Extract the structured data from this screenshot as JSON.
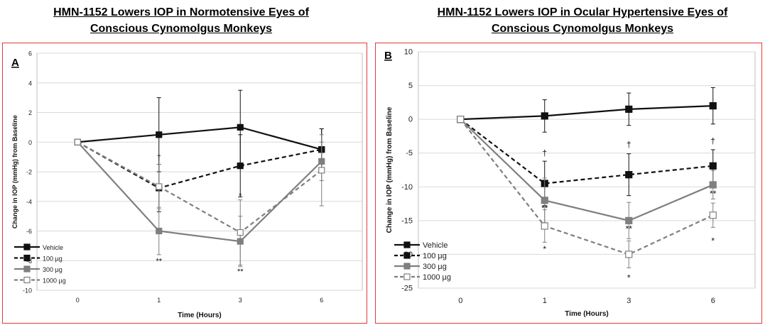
{
  "titles": {
    "a_line1": "HMN-1152 Lowers IOP in Normotensive Eyes of",
    "a_line2": "Conscious Cynomolgus Monkeys",
    "b_line1": "HMN-1152 Lowers  IOP in  Ocular Hypertensive Eyes of",
    "b_line2": "Conscious Cynomolgus Monkeys"
  },
  "chart_data": [
    {
      "type": "line",
      "panel_label": "A",
      "xlabel": "Time (Hours)",
      "ylabel": "Change in IOP (mmHg) from Baseline",
      "categories": [
        "0",
        "1",
        "3",
        "6"
      ],
      "ylim": [
        -10,
        6
      ],
      "yticks": [
        6,
        4,
        2,
        0,
        -2,
        -4,
        -6,
        -8,
        -10
      ],
      "grid": true,
      "legend_position": "bottom-left",
      "series": [
        {
          "name": "Vehicle",
          "values": [
            0,
            0.5,
            1.0,
            -0.5
          ],
          "err": [
            0,
            2.5,
            2.5,
            1.4
          ],
          "color": "#111111",
          "dash": "solid",
          "marker": "filled"
        },
        {
          "name": "100 µg",
          "values": [
            0,
            -3.1,
            -1.6,
            -0.5
          ],
          "err": [
            0,
            1.6,
            2.1,
            1.4
          ],
          "color": "#111111",
          "dash": "dashed",
          "marker": "filled"
        },
        {
          "name": "300 µg",
          "values": [
            0,
            -6.0,
            -6.7,
            -1.3
          ],
          "err": [
            0,
            1.6,
            1.7,
            1.3
          ],
          "color": "#7f7f7f",
          "dash": "solid",
          "marker": "filled"
        },
        {
          "name": "1000 µg",
          "values": [
            0,
            -3.0,
            -6.1,
            -1.9
          ],
          "err": [
            0,
            1.5,
            2.2,
            2.4
          ],
          "color": "#7f7f7f",
          "dash": "dashed",
          "marker": "open"
        }
      ],
      "annotations": [
        {
          "text": "†",
          "x": "1",
          "y": -1.0
        },
        {
          "text": "**",
          "x": "1",
          "y": -8.0
        },
        {
          "text": "*",
          "x": "3",
          "y": -3.6
        },
        {
          "text": "**",
          "x": "3",
          "y": -8.7
        }
      ]
    },
    {
      "type": "line",
      "panel_label": "B",
      "xlabel": "Time (Hours)",
      "ylabel": "Change in IOP (mmHg) from Baseline",
      "categories": [
        "0",
        "1",
        "3",
        "6"
      ],
      "ylim": [
        -25,
        10
      ],
      "yticks": [
        10,
        5,
        0,
        -5,
        -10,
        -15,
        -20,
        -25
      ],
      "grid": true,
      "legend_position": "bottom-left",
      "series": [
        {
          "name": "Vehicle",
          "values": [
            0,
            0.5,
            1.5,
            2.0
          ],
          "err": [
            0,
            2.4,
            2.4,
            2.7
          ],
          "color": "#111111",
          "dash": "solid",
          "marker": "filled"
        },
        {
          "name": "100 µg",
          "values": [
            0,
            -9.5,
            -8.2,
            -6.9
          ],
          "err": [
            0,
            3.3,
            3.1,
            2.4
          ],
          "color": "#111111",
          "dash": "dashed",
          "marker": "filled"
        },
        {
          "name": "300 µg",
          "values": [
            0,
            -12.0,
            -15.0,
            -9.7
          ],
          "err": [
            0,
            3.3,
            2.7,
            2.1
          ],
          "color": "#7f7f7f",
          "dash": "solid",
          "marker": "filled"
        },
        {
          "name": "1000 µg",
          "values": [
            0,
            -15.8,
            -20.0,
            -14.2
          ],
          "err": [
            0,
            2.4,
            2.0,
            1.8
          ],
          "color": "#7f7f7f",
          "dash": "dashed",
          "marker": "open"
        }
      ],
      "annotations": [
        {
          "text": "†",
          "x": "1",
          "y": -5.0
        },
        {
          "text": "**",
          "x": "1",
          "y": -13.2
        },
        {
          "text": "*",
          "x": "1",
          "y": -19.2
        },
        {
          "text": "†",
          "x": "3",
          "y": -3.7
        },
        {
          "text": "**",
          "x": "3",
          "y": -16.2
        },
        {
          "text": "*",
          "x": "3",
          "y": -23.5
        },
        {
          "text": "†",
          "x": "6",
          "y": -3.2
        },
        {
          "text": "**",
          "x": "6",
          "y": -11.0
        },
        {
          "text": "*",
          "x": "6",
          "y": -18.0
        }
      ]
    }
  ]
}
